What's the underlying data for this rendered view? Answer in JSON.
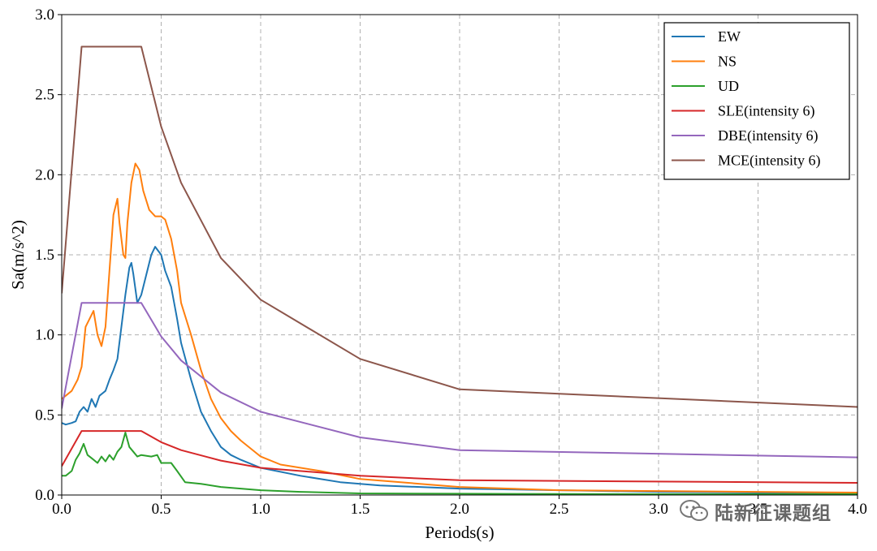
{
  "chart_data": {
    "type": "line",
    "xlabel": "Periods(s)",
    "ylabel": "Sa(m/s^2)",
    "xlim": [
      0.0,
      4.0
    ],
    "ylim": [
      0.0,
      3.0
    ],
    "xticks": [
      "0.0",
      "0.5",
      "1.0",
      "1.5",
      "2.0",
      "2.5",
      "3.0",
      "3.5",
      "4.0"
    ],
    "yticks": [
      "0.0",
      "0.5",
      "1.0",
      "1.5",
      "2.0",
      "2.5",
      "3.0"
    ],
    "grid": true,
    "legend_position": "top-right",
    "series": [
      {
        "name": "EW",
        "color": "#1f77b4",
        "points": [
          [
            0,
            0.45
          ],
          [
            0.02,
            0.44
          ],
          [
            0.05,
            0.45
          ],
          [
            0.07,
            0.46
          ],
          [
            0.09,
            0.52
          ],
          [
            0.11,
            0.55
          ],
          [
            0.13,
            0.52
          ],
          [
            0.15,
            0.6
          ],
          [
            0.17,
            0.55
          ],
          [
            0.19,
            0.62
          ],
          [
            0.22,
            0.65
          ],
          [
            0.24,
            0.72
          ],
          [
            0.26,
            0.78
          ],
          [
            0.28,
            0.85
          ],
          [
            0.3,
            1.05
          ],
          [
            0.32,
            1.25
          ],
          [
            0.34,
            1.42
          ],
          [
            0.35,
            1.45
          ],
          [
            0.36,
            1.38
          ],
          [
            0.38,
            1.2
          ],
          [
            0.4,
            1.25
          ],
          [
            0.42,
            1.35
          ],
          [
            0.45,
            1.5
          ],
          [
            0.47,
            1.55
          ],
          [
            0.5,
            1.5
          ],
          [
            0.52,
            1.4
          ],
          [
            0.55,
            1.3
          ],
          [
            0.58,
            1.1
          ],
          [
            0.6,
            0.95
          ],
          [
            0.65,
            0.72
          ],
          [
            0.7,
            0.52
          ],
          [
            0.75,
            0.4
          ],
          [
            0.8,
            0.3
          ],
          [
            0.85,
            0.25
          ],
          [
            0.9,
            0.22
          ],
          [
            1.0,
            0.17
          ],
          [
            1.2,
            0.12
          ],
          [
            1.4,
            0.08
          ],
          [
            1.6,
            0.06
          ],
          [
            2.0,
            0.04
          ],
          [
            2.5,
            0.03
          ],
          [
            3.0,
            0.02
          ],
          [
            3.5,
            0.015
          ],
          [
            4.0,
            0.01
          ]
        ]
      },
      {
        "name": "NS",
        "color": "#ff7f0e",
        "points": [
          [
            0,
            0.6
          ],
          [
            0.02,
            0.62
          ],
          [
            0.05,
            0.65
          ],
          [
            0.08,
            0.72
          ],
          [
            0.1,
            0.8
          ],
          [
            0.12,
            1.05
          ],
          [
            0.14,
            1.1
          ],
          [
            0.16,
            1.15
          ],
          [
            0.18,
            1.0
          ],
          [
            0.2,
            0.93
          ],
          [
            0.22,
            1.05
          ],
          [
            0.24,
            1.4
          ],
          [
            0.26,
            1.75
          ],
          [
            0.28,
            1.85
          ],
          [
            0.29,
            1.7
          ],
          [
            0.31,
            1.5
          ],
          [
            0.32,
            1.48
          ],
          [
            0.33,
            1.7
          ],
          [
            0.35,
            1.95
          ],
          [
            0.37,
            2.07
          ],
          [
            0.39,
            2.03
          ],
          [
            0.41,
            1.9
          ],
          [
            0.44,
            1.78
          ],
          [
            0.47,
            1.74
          ],
          [
            0.5,
            1.74
          ],
          [
            0.52,
            1.72
          ],
          [
            0.55,
            1.6
          ],
          [
            0.58,
            1.4
          ],
          [
            0.6,
            1.2
          ],
          [
            0.65,
            1.0
          ],
          [
            0.7,
            0.78
          ],
          [
            0.75,
            0.6
          ],
          [
            0.8,
            0.48
          ],
          [
            0.85,
            0.4
          ],
          [
            0.9,
            0.34
          ],
          [
            1.0,
            0.24
          ],
          [
            1.1,
            0.19
          ],
          [
            1.3,
            0.15
          ],
          [
            1.5,
            0.1
          ],
          [
            1.8,
            0.07
          ],
          [
            2.0,
            0.05
          ],
          [
            2.5,
            0.03
          ],
          [
            3.0,
            0.025
          ],
          [
            3.5,
            0.02
          ],
          [
            4.0,
            0.015
          ]
        ]
      },
      {
        "name": "UD",
        "color": "#2ca02c",
        "points": [
          [
            0,
            0.12
          ],
          [
            0.02,
            0.12
          ],
          [
            0.05,
            0.15
          ],
          [
            0.07,
            0.22
          ],
          [
            0.09,
            0.26
          ],
          [
            0.11,
            0.32
          ],
          [
            0.13,
            0.25
          ],
          [
            0.15,
            0.23
          ],
          [
            0.18,
            0.2
          ],
          [
            0.2,
            0.24
          ],
          [
            0.22,
            0.21
          ],
          [
            0.24,
            0.25
          ],
          [
            0.26,
            0.22
          ],
          [
            0.28,
            0.27
          ],
          [
            0.3,
            0.3
          ],
          [
            0.32,
            0.39
          ],
          [
            0.34,
            0.3
          ],
          [
            0.36,
            0.27
          ],
          [
            0.38,
            0.24
          ],
          [
            0.4,
            0.25
          ],
          [
            0.45,
            0.24
          ],
          [
            0.48,
            0.25
          ],
          [
            0.5,
            0.2
          ],
          [
            0.55,
            0.2
          ],
          [
            0.58,
            0.15
          ],
          [
            0.62,
            0.08
          ],
          [
            0.7,
            0.07
          ],
          [
            0.8,
            0.05
          ],
          [
            0.9,
            0.04
          ],
          [
            1.0,
            0.03
          ],
          [
            1.2,
            0.02
          ],
          [
            1.5,
            0.01
          ],
          [
            2.0,
            0.008
          ],
          [
            3.0,
            0.005
          ],
          [
            4.0,
            0.005
          ]
        ]
      },
      {
        "name": "SLE(intensity 6)",
        "color": "#d62728",
        "points": [
          [
            0,
            0.18
          ],
          [
            0.1,
            0.4
          ],
          [
            0.4,
            0.4
          ],
          [
            0.5,
            0.33
          ],
          [
            0.6,
            0.28
          ],
          [
            0.8,
            0.215
          ],
          [
            1.0,
            0.17
          ],
          [
            1.5,
            0.12
          ],
          [
            2.0,
            0.092
          ],
          [
            4.0,
            0.076
          ]
        ]
      },
      {
        "name": "DBE(intensity 6)",
        "color": "#9467bd",
        "points": [
          [
            0,
            0.54
          ],
          [
            0.1,
            1.2
          ],
          [
            0.4,
            1.2
          ],
          [
            0.5,
            0.99
          ],
          [
            0.6,
            0.84
          ],
          [
            0.8,
            0.64
          ],
          [
            1.0,
            0.52
          ],
          [
            1.5,
            0.36
          ],
          [
            2.0,
            0.28
          ],
          [
            4.0,
            0.235
          ]
        ]
      },
      {
        "name": "MCE(intensity 6)",
        "color": "#8c564b",
        "points": [
          [
            0,
            1.26
          ],
          [
            0.1,
            2.8
          ],
          [
            0.4,
            2.8
          ],
          [
            0.5,
            2.3
          ],
          [
            0.6,
            1.95
          ],
          [
            0.8,
            1.48
          ],
          [
            1.0,
            1.22
          ],
          [
            1.5,
            0.85
          ],
          [
            2.0,
            0.66
          ],
          [
            4.0,
            0.55
          ]
        ]
      }
    ]
  },
  "watermark": {
    "text": "陆新征课题组",
    "icon": "wechat-icon"
  }
}
